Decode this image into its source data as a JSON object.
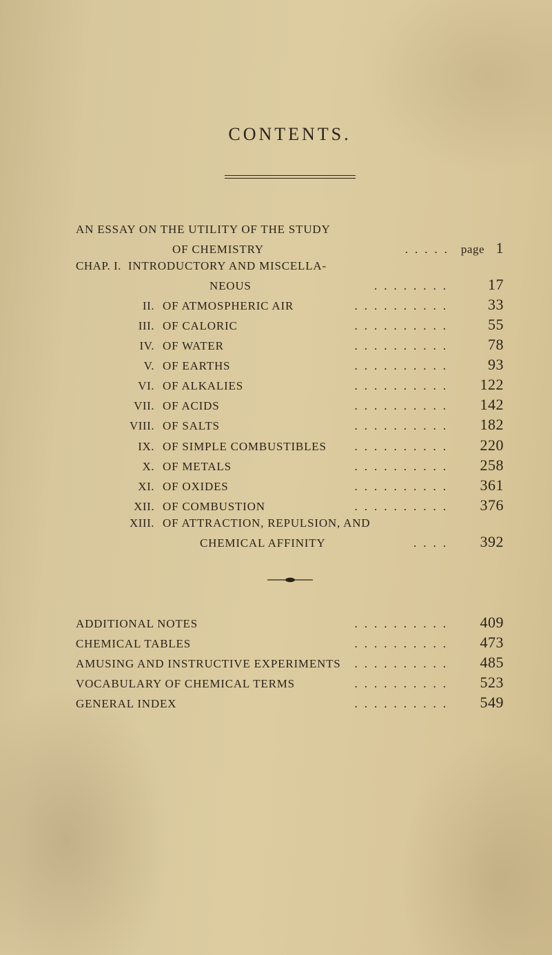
{
  "title": "CONTENTS.",
  "essay": {
    "line1": "AN ESSAY ON THE UTILITY OF THE STUDY",
    "line2": "OF CHEMISTRY",
    "page_word": "page",
    "page_num": "1"
  },
  "chap_lead": "CHAP. I.",
  "chap_title_l1": "INTRODUCTORY AND MISCELLA-",
  "chap_title_l2": "NEOUS",
  "chap_page": "17",
  "chapters": [
    {
      "roman": "II.",
      "label": "OF ATMOSPHERIC AIR",
      "page": "33"
    },
    {
      "roman": "III.",
      "label": "OF CALORIC",
      "page": "55"
    },
    {
      "roman": "IV.",
      "label": "OF WATER",
      "page": "78"
    },
    {
      "roman": "V.",
      "label": "OF EARTHS",
      "page": "93"
    },
    {
      "roman": "VI.",
      "label": "OF ALKALIES",
      "page": "122"
    },
    {
      "roman": "VII.",
      "label": "OF ACIDS",
      "page": "142"
    },
    {
      "roman": "VIII.",
      "label": "OF SALTS",
      "page": "182"
    },
    {
      "roman": "IX.",
      "label": "OF SIMPLE COMBUSTIBLES",
      "page": "220"
    },
    {
      "roman": "X.",
      "label": "OF METALS",
      "page": "258"
    },
    {
      "roman": "XI.",
      "label": "OF OXIDES",
      "page": "361"
    },
    {
      "roman": "XII.",
      "label": "OF COMBUSTION",
      "page": "376"
    }
  ],
  "chap13": {
    "roman": "XIII.",
    "line1": "OF ATTRACTION, REPULSION, AND",
    "line2": "CHEMICAL AFFINITY",
    "page": "392"
  },
  "bottom": [
    {
      "label": "ADDITIONAL NOTES",
      "page": "409"
    },
    {
      "label": "CHEMICAL TABLES",
      "page": "473"
    },
    {
      "label": "AMUSING AND INSTRUCTIVE EXPERIMENTS",
      "page": "485"
    },
    {
      "label": "VOCABULARY OF CHEMICAL TERMS",
      "page": "523"
    },
    {
      "label": "GENERAL INDEX",
      "page": "549"
    }
  ],
  "dot": "."
}
